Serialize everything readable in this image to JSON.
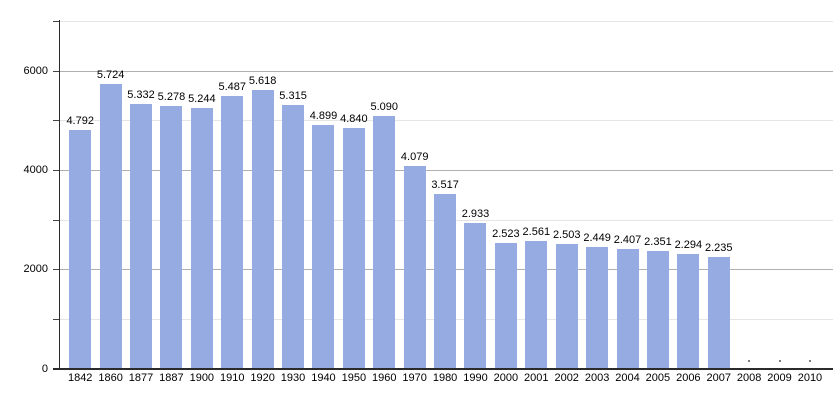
{
  "chart_data": {
    "type": "bar",
    "title": "",
    "xlabel": "",
    "ylabel": "",
    "categories": [
      "1842",
      "1860",
      "1877",
      "1887",
      "1900",
      "1910",
      "1920",
      "1930",
      "1940",
      "1950",
      "1960",
      "1970",
      "1980",
      "1990",
      "2000",
      "2001",
      "2002",
      "2003",
      "2004",
      "2005",
      "2006",
      "2007",
      "2008",
      "2009",
      "2010"
    ],
    "values": [
      4792,
      5724,
      5332,
      5278,
      5244,
      5487,
      5618,
      5315,
      4899,
      4840,
      5090,
      4079,
      3517,
      2933,
      2523,
      2561,
      2503,
      2449,
      2407,
      2351,
      2294,
      2235,
      null,
      null,
      null
    ],
    "value_labels": [
      "4.792",
      "5.724",
      "5.332",
      "5.278",
      "5.244",
      "5.487",
      "5.618",
      "5.315",
      "4.899",
      "4.840",
      "5.090",
      "4.079",
      "3.517",
      "2.933",
      "2.523",
      "2.561",
      "2.503",
      "2.449",
      "2.407",
      "2.351",
      "2.294",
      "2.235",
      "",
      "",
      ""
    ],
    "ylim": [
      0,
      7000
    ],
    "y_major_ticks": [
      0,
      2000,
      4000,
      6000
    ],
    "y_major_tick_labels": [
      "0",
      "2000",
      "4000",
      "6000"
    ],
    "y_minor_ticks": [
      1000,
      3000,
      5000,
      7000
    ],
    "grid": true,
    "legend": "none",
    "null_marker": "dot",
    "colors": {
      "bar": "#96abe1",
      "grid_major": "#b0b0b0",
      "grid_minor": "#e5e5e5",
      "axis": "#2b2b2b",
      "tick": "#444444",
      "label": "#000000",
      "null_dot": "#555555",
      "background": "#ffffff"
    }
  }
}
